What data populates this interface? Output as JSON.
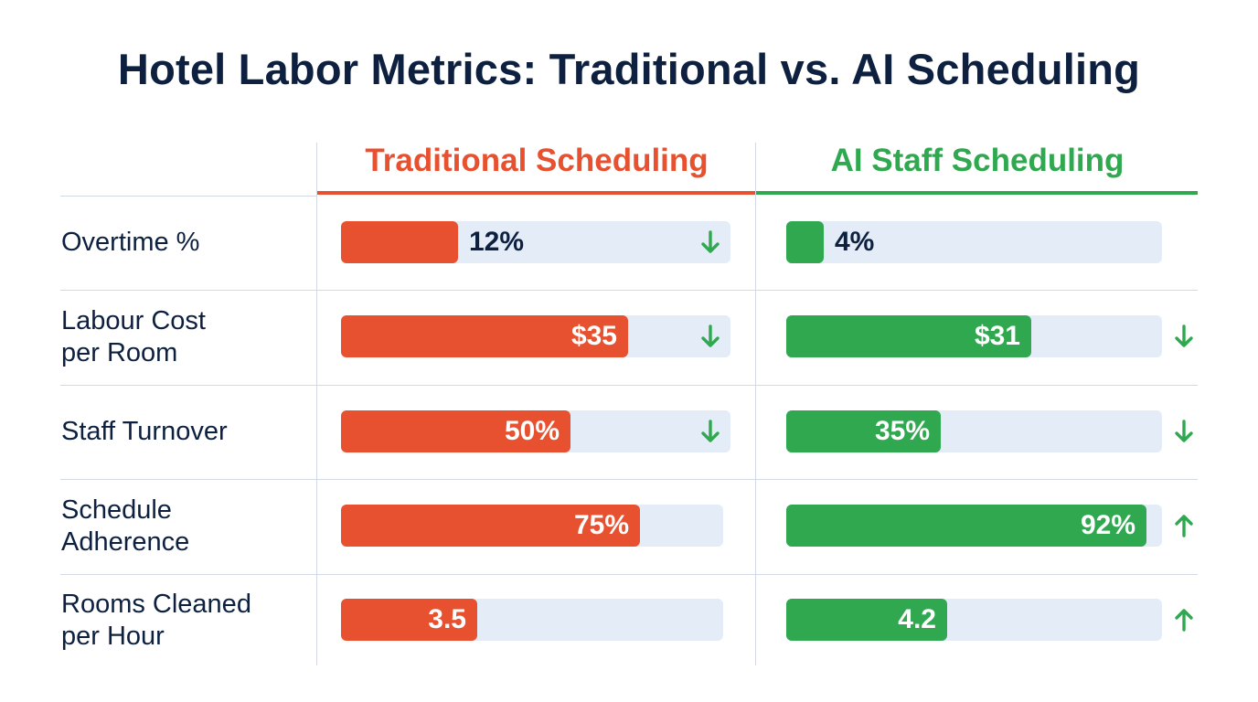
{
  "title": "Hotel Labor Metrics: Traditional vs. AI Scheduling",
  "colors": {
    "traditional": "#e8512f",
    "ai": "#2fa84f",
    "text": "#0d2040",
    "track": "#e3ecf7",
    "arrow": "#2fa84f"
  },
  "chart_data": {
    "type": "bar",
    "title": "Hotel Labor Metrics: Traditional vs. AI Scheduling",
    "series": [
      {
        "name": "Traditional Scheduling"
      },
      {
        "name": "AI Staff Scheduling"
      }
    ],
    "rows": [
      {
        "label": "Overtime %",
        "traditional": {
          "value": 12,
          "label": "12%",
          "arrow": "down"
        },
        "ai": {
          "value": 4,
          "label": "4%",
          "arrow": ""
        }
      },
      {
        "label": "Labour Cost\nper Room",
        "traditional": {
          "value": 35,
          "label": "$35",
          "arrow": "down"
        },
        "ai": {
          "value": 31,
          "label": "$31",
          "arrow": "down"
        }
      },
      {
        "label": "Staff Turnover",
        "traditional": {
          "value": 50,
          "label": "50%",
          "arrow": "down"
        },
        "ai": {
          "value": 35,
          "label": "35%",
          "arrow": "down"
        }
      },
      {
        "label": "Schedule\nAdherence",
        "traditional": {
          "value": 75,
          "label": "75%",
          "arrow": ""
        },
        "ai": {
          "value": 92,
          "label": "92%",
          "arrow": "up"
        }
      },
      {
        "label": "Rooms Cleaned\nper Hour",
        "traditional": {
          "value": 3.5,
          "label": "3.5",
          "arrow": ""
        },
        "ai": {
          "value": 4.2,
          "label": "4.2",
          "arrow": "up"
        }
      }
    ]
  }
}
